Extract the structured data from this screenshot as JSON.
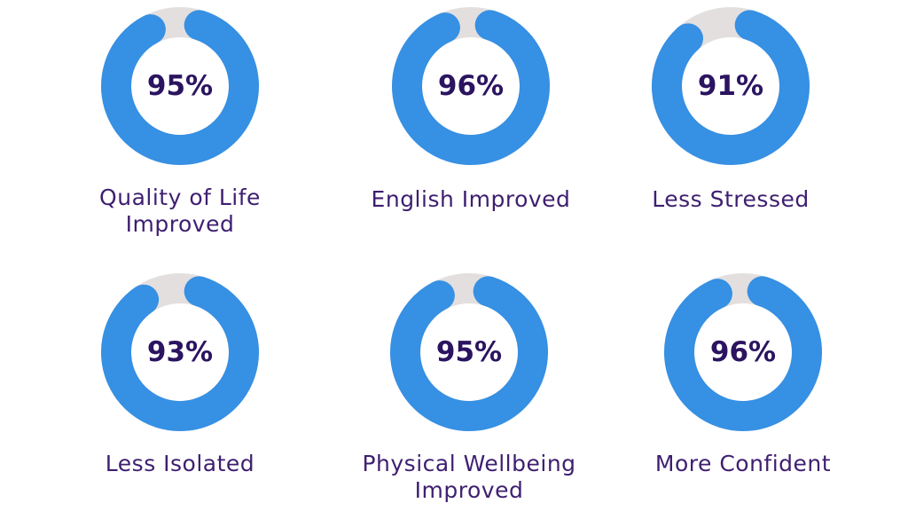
{
  "chart_data": [
    {
      "type": "donut",
      "title": "Quality of Life Improved",
      "values": [
        95
      ],
      "value_labels": [
        "95%"
      ],
      "color": "#3690e3",
      "track_color": "#e3dfdf"
    },
    {
      "type": "donut",
      "title": "English Improved",
      "values": [
        96
      ],
      "value_labels": [
        "96%"
      ],
      "color": "#3690e3",
      "track_color": "#e3dfdf"
    },
    {
      "type": "donut",
      "title": "Less Stressed",
      "values": [
        91
      ],
      "value_labels": [
        "91%"
      ],
      "color": "#3690e3",
      "track_color": "#e3dfdf"
    },
    {
      "type": "donut",
      "title": "Less Isolated",
      "values": [
        93
      ],
      "value_labels": [
        "93%"
      ],
      "color": "#3690e3",
      "track_color": "#e3dfdf"
    },
    {
      "type": "donut",
      "title": "Physical Wellbeing Improved",
      "values": [
        95
      ],
      "value_labels": [
        "95%"
      ],
      "color": "#3690e3",
      "track_color": "#e3dfdf"
    },
    {
      "type": "donut",
      "title": "More Confident",
      "values": [
        96
      ],
      "value_labels": [
        "96%"
      ],
      "color": "#3690e3",
      "track_color": "#e3dfdf"
    }
  ]
}
